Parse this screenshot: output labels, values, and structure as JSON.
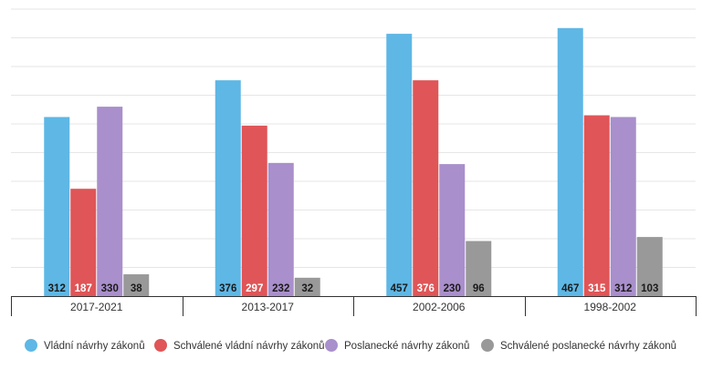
{
  "chart_data": {
    "type": "bar",
    "title": "",
    "xlabel": "",
    "ylabel": "",
    "ylim": [
      0,
      500
    ],
    "grid": true,
    "legend_position": "bottom",
    "categories": [
      "2017-2021",
      "2013-2017",
      "2002-2006",
      "1998-2002"
    ],
    "series": [
      {
        "name": "Vládní návrhy zákonů",
        "color": "#5eb7e5",
        "label_color": "#1a1a1a",
        "values": [
          312,
          376,
          457,
          467
        ]
      },
      {
        "name": "Schválené vládní návrhy zákonů",
        "color": "#e05557",
        "label_color": "#ffffff",
        "values": [
          187,
          297,
          376,
          315
        ]
      },
      {
        "name": "Poslanecké návrhy zákonů",
        "color": "#a98fcb",
        "label_color": "#1a1a1a",
        "values": [
          330,
          232,
          230,
          312
        ]
      },
      {
        "name": "Schválené poslanecké návrhy zákonů",
        "color": "#999999",
        "label_color": "#1a1a1a",
        "values": [
          38,
          32,
          96,
          103
        ]
      }
    ]
  }
}
